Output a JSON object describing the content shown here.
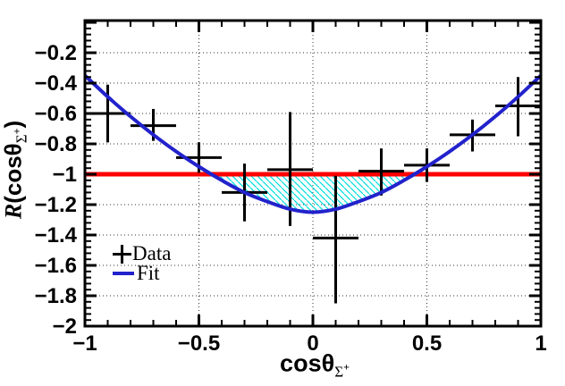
{
  "chart_data": {
    "type": "scatter",
    "title": "",
    "xlabel": "cosθ_Σ+",
    "ylabel": "R(cosθ_Σ+)",
    "xlim": [
      -1,
      1
    ],
    "ylim": [
      -2,
      0.012
    ],
    "grid": "dotted",
    "legend_position": "lower-left-inside",
    "x_ticks": {
      "values": [
        -1,
        -0.5,
        0,
        0.5,
        1
      ],
      "labels": [
        "−1",
        "−0.5",
        "0",
        "0.5",
        "1"
      ],
      "minor_step": 0.1
    },
    "y_ticks": {
      "values": [
        -0.2,
        -0.4,
        -0.6,
        -0.8,
        -1,
        -1.2,
        -1.4,
        -1.6,
        -1.8,
        -2
      ],
      "labels": [
        "−0.2",
        "−0.4",
        "−0.6",
        "−0.8",
        "−1",
        "−1.2",
        "−1.4",
        "−1.6",
        "−1.8",
        "−2"
      ],
      "minor_step": 0.04
    },
    "reference_line": {
      "y": -1,
      "color": "#ff0000"
    },
    "hatch_region": {
      "description": "area between fit curve and y=-1 where curve is below -1",
      "x_range": [
        -0.444,
        0.444
      ],
      "color": "#00dede"
    },
    "series": [
      {
        "name": "Data",
        "type": "errorbar",
        "color": "#000000",
        "x_halfwidth": 0.1,
        "points": [
          {
            "x": -0.9,
            "y": -0.6,
            "y_high": -0.41,
            "y_low": -0.79
          },
          {
            "x": -0.7,
            "y": -0.68,
            "y_high": -0.57,
            "y_low": -0.78
          },
          {
            "x": -0.5,
            "y": -0.89,
            "y_high": -0.79,
            "y_low": -0.99
          },
          {
            "x": -0.3,
            "y": -1.12,
            "y_high": -0.93,
            "y_low": -1.31
          },
          {
            "x": -0.1,
            "y": -0.97,
            "y_high": -0.59,
            "y_low": -1.34
          },
          {
            "x": 0.1,
            "y": -1.42,
            "y_high": -1.01,
            "y_low": -1.85
          },
          {
            "x": 0.3,
            "y": -0.98,
            "y_high": -0.83,
            "y_low": -1.14
          },
          {
            "x": 0.5,
            "y": -0.94,
            "y_high": -0.83,
            "y_low": -1.05
          },
          {
            "x": 0.7,
            "y": -0.74,
            "y_high": -0.64,
            "y_low": -0.85
          },
          {
            "x": 0.9,
            "y": -0.55,
            "y_high": -0.36,
            "y_low": -0.75
          }
        ]
      },
      {
        "name": "Fit",
        "type": "curve",
        "color": "#2222cc",
        "points": [
          [
            -1,
            -0.35
          ],
          [
            -0.9,
            -0.49
          ],
          [
            -0.8,
            -0.62
          ],
          [
            -0.7,
            -0.74
          ],
          [
            -0.6,
            -0.85
          ],
          [
            -0.5,
            -0.95
          ],
          [
            -0.4,
            -1.04
          ],
          [
            -0.3,
            -1.12
          ],
          [
            -0.2,
            -1.18
          ],
          [
            -0.1,
            -1.23
          ],
          [
            0,
            -1.25
          ],
          [
            0.1,
            -1.23
          ],
          [
            0.2,
            -1.18
          ],
          [
            0.3,
            -1.12
          ],
          [
            0.4,
            -1.04
          ],
          [
            0.5,
            -0.95
          ],
          [
            0.6,
            -0.85
          ],
          [
            0.7,
            -0.74
          ],
          [
            0.8,
            -0.62
          ],
          [
            0.9,
            -0.49
          ],
          [
            1,
            -0.35
          ]
        ]
      }
    ],
    "colors": {
      "frame": "#000000",
      "grid": "#333333",
      "background": "#ffffff"
    }
  },
  "labels": {
    "y_title": {
      "r": "R",
      "open": "(cos",
      "theta": "θ",
      "sub": "Σ",
      "sup": "+",
      "close": ")"
    },
    "x_title": {
      "main": "cos",
      "theta": "θ",
      "sub": "Σ",
      "sup": "+"
    }
  }
}
